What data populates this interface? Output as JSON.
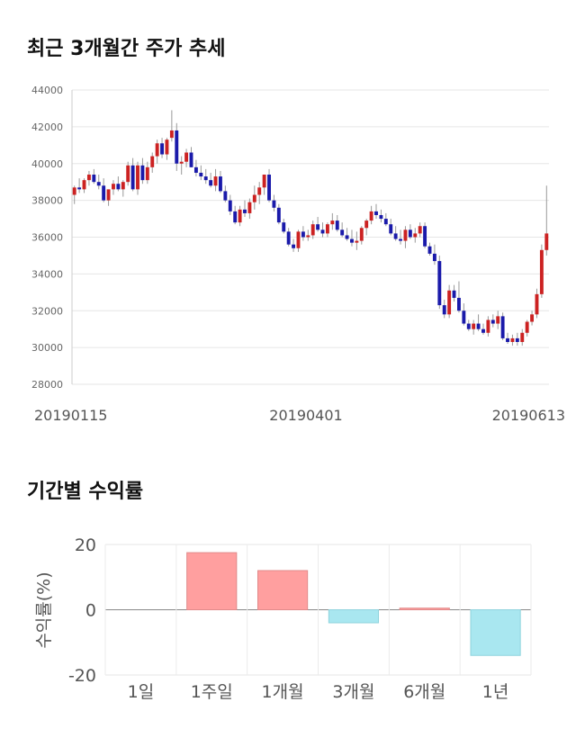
{
  "sections": {
    "price_title": "최근 3개월간 주가 추세",
    "returns_title": "기간별 수익률"
  },
  "chart_data": [
    {
      "type": "candlestick",
      "title": "최근 3개월간 주가 추세",
      "ylim": [
        28000,
        44000
      ],
      "y_ticks": [
        "44000",
        "42000",
        "40000",
        "38000",
        "36000",
        "34000",
        "32000",
        "30000",
        "28000"
      ],
      "x_tick_labels": [
        "20190115",
        "20190401",
        "20190613"
      ],
      "grid": true,
      "colors": {
        "up": "#cc2222",
        "down": "#1a1aaa",
        "grid": "#e6e6e6"
      },
      "candles": [
        [
          38300,
          38800,
          37800,
          38700
        ],
        [
          38700,
          39200,
          38400,
          38600
        ],
        [
          38600,
          39200,
          38400,
          39100
        ],
        [
          39100,
          39600,
          38800,
          39400
        ],
        [
          39400,
          39700,
          38900,
          39000
        ],
        [
          39000,
          39400,
          38600,
          38800
        ],
        [
          38800,
          39200,
          37900,
          38000
        ],
        [
          38000,
          38500,
          37700,
          38600
        ],
        [
          38600,
          39100,
          38300,
          38900
        ],
        [
          38900,
          39300,
          38500,
          38600
        ],
        [
          38600,
          39100,
          38200,
          39000
        ],
        [
          39000,
          40100,
          38800,
          39900
        ],
        [
          39900,
          40300,
          38500,
          38600
        ],
        [
          38600,
          40100,
          38300,
          39900
        ],
        [
          39900,
          40300,
          38900,
          39100
        ],
        [
          39100,
          40100,
          38900,
          39800
        ],
        [
          39800,
          40600,
          39500,
          40400
        ],
        [
          40400,
          41300,
          40000,
          41100
        ],
        [
          41100,
          41400,
          40300,
          40500
        ],
        [
          40500,
          41400,
          40200,
          41300
        ],
        [
          41400,
          42900,
          41200,
          41800
        ],
        [
          41800,
          42200,
          39600,
          40000
        ],
        [
          40000,
          40400,
          39400,
          40100
        ],
        [
          40100,
          40800,
          39800,
          40600
        ],
        [
          40600,
          40900,
          39800,
          39800
        ],
        [
          39800,
          40200,
          39300,
          39500
        ],
        [
          39500,
          39900,
          39100,
          39300
        ],
        [
          39300,
          39700,
          38900,
          39100
        ],
        [
          39100,
          39500,
          38700,
          38800
        ],
        [
          38800,
          39700,
          38500,
          39300
        ],
        [
          39300,
          39600,
          38400,
          38500
        ],
        [
          38500,
          38800,
          37900,
          38000
        ],
        [
          38000,
          38300,
          37200,
          37400
        ],
        [
          37400,
          37700,
          36700,
          36800
        ],
        [
          36800,
          37700,
          36600,
          37500
        ],
        [
          37500,
          38000,
          37100,
          37300
        ],
        [
          37300,
          38100,
          37000,
          37900
        ],
        [
          37900,
          38800,
          37500,
          38300
        ],
        [
          38300,
          39000,
          37800,
          38700
        ],
        [
          38700,
          39400,
          38300,
          39400
        ],
        [
          39400,
          39700,
          37900,
          38000
        ],
        [
          38000,
          38300,
          37400,
          37600
        ],
        [
          37600,
          37800,
          36700,
          36800
        ],
        [
          36800,
          37000,
          36200,
          36300
        ],
        [
          36300,
          36500,
          35500,
          35600
        ],
        [
          35600,
          35900,
          35200,
          35400
        ],
        [
          35400,
          36400,
          35200,
          36300
        ],
        [
          36300,
          36600,
          35800,
          36000
        ],
        [
          36000,
          36400,
          35800,
          36100
        ],
        [
          36100,
          36900,
          35900,
          36700
        ],
        [
          36700,
          37100,
          36300,
          36400
        ],
        [
          36400,
          36800,
          36000,
          36200
        ],
        [
          36200,
          36800,
          36000,
          36700
        ],
        [
          36700,
          37300,
          36400,
          36900
        ],
        [
          36900,
          37200,
          36300,
          36400
        ],
        [
          36400,
          36800,
          36000,
          36100
        ],
        [
          36100,
          36500,
          35800,
          35900
        ],
        [
          35900,
          36400,
          35500,
          35700
        ],
        [
          35700,
          36300,
          35300,
          35800
        ],
        [
          35800,
          36600,
          35600,
          36500
        ],
        [
          36500,
          37000,
          36100,
          36900
        ],
        [
          36900,
          37700,
          36700,
          37400
        ],
        [
          37400,
          37800,
          37000,
          37200
        ],
        [
          37200,
          37500,
          36800,
          37000
        ],
        [
          37000,
          37300,
          36600,
          36700
        ],
        [
          36700,
          37000,
          36100,
          36200
        ],
        [
          36200,
          36600,
          35800,
          35900
        ],
        [
          35900,
          36400,
          35600,
          35800
        ],
        [
          35800,
          36600,
          35400,
          36400
        ],
        [
          36400,
          36700,
          35900,
          36000
        ],
        [
          36000,
          36500,
          35700,
          36200
        ],
        [
          36200,
          36800,
          36000,
          36600
        ],
        [
          36600,
          36800,
          35400,
          35500
        ],
        [
          35500,
          35700,
          35000,
          35100
        ],
        [
          35100,
          35600,
          34500,
          34700
        ],
        [
          34700,
          35000,
          32100,
          32300
        ],
        [
          32300,
          32600,
          31600,
          31800
        ],
        [
          31800,
          33400,
          31600,
          33100
        ],
        [
          33100,
          33400,
          32500,
          32700
        ],
        [
          32700,
          33600,
          31900,
          32000
        ],
        [
          32000,
          32400,
          31200,
          31300
        ],
        [
          31300,
          31500,
          30900,
          31000
        ],
        [
          31000,
          31500,
          30700,
          31300
        ],
        [
          31300,
          31800,
          30900,
          31000
        ],
        [
          31000,
          31300,
          30700,
          30800
        ],
        [
          30800,
          31700,
          30600,
          31500
        ],
        [
          31500,
          31800,
          31100,
          31300
        ],
        [
          31300,
          32000,
          31000,
          31700
        ],
        [
          31700,
          31900,
          30400,
          30500
        ],
        [
          30500,
          30800,
          30200,
          30300
        ],
        [
          30300,
          30700,
          30100,
          30500
        ],
        [
          30500,
          30800,
          30100,
          30300
        ],
        [
          30300,
          31000,
          30100,
          30800
        ],
        [
          30800,
          31500,
          30600,
          31400
        ],
        [
          31400,
          32000,
          31200,
          31800
        ],
        [
          31800,
          33200,
          31600,
          32900
        ],
        [
          32900,
          35600,
          32700,
          35300
        ],
        [
          35300,
          38800,
          35000,
          36200
        ]
      ]
    },
    {
      "type": "bar",
      "title": "기간별 수익률",
      "ylabel": "수익률(%)",
      "ylim": [
        -20,
        20
      ],
      "y_ticks": [
        "20",
        "0",
        "-20"
      ],
      "categories": [
        "1일",
        "1주일",
        "1개월",
        "3개월",
        "6개월",
        "1년"
      ],
      "values": [
        0,
        17.5,
        12.0,
        -4.0,
        0.5,
        -14.0
      ],
      "colors": {
        "positive": "#ff9f9f",
        "negative": "#a9e7f0"
      }
    }
  ]
}
